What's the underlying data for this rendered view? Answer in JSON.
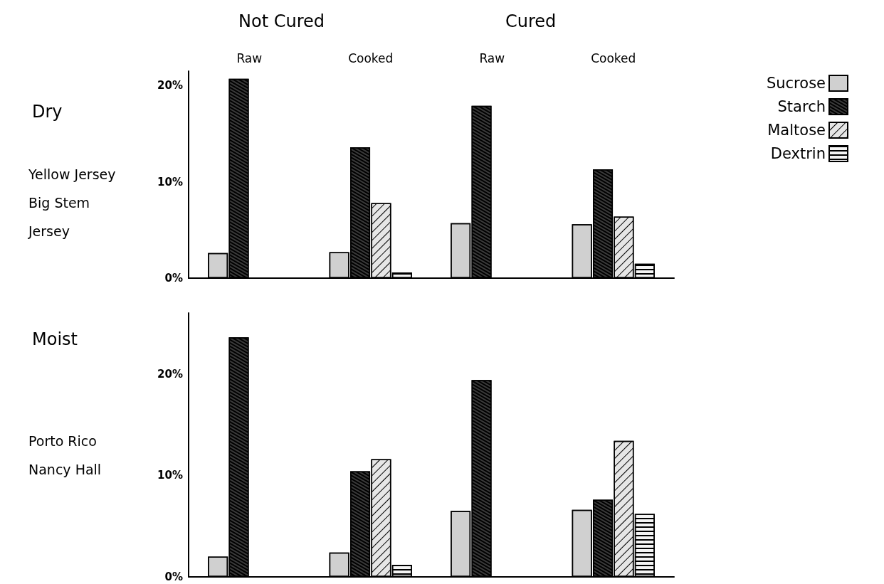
{
  "chart_data": [
    {
      "type": "bar",
      "title": "Dry",
      "categories": [
        "Raw",
        "Cooked",
        "Raw",
        "Cooked"
      ],
      "annotations": [
        "Not Cured",
        "Cured",
        "Yellow Jersey",
        "Big Stem",
        "Jersey"
      ],
      "series": [
        {
          "name": "Sucrose",
          "color": "#d0d0d0",
          "values": [
            2.6,
            2.7,
            5.7,
            5.6
          ]
        },
        {
          "name": "Starch",
          "color": "#3a3a3a",
          "values": [
            20.7,
            13.6,
            17.9,
            11.3
          ]
        },
        {
          "name": "Maltose",
          "color": "#e6e6e6",
          "values": [
            null,
            7.8,
            null,
            6.4
          ]
        },
        {
          "name": "Dextrin",
          "color": "#f4f4f4",
          "values": [
            null,
            0.6,
            null,
            1.5
          ]
        }
      ],
      "ylim": [
        0,
        21.5
      ],
      "yticks": [
        {
          "value": 0,
          "label": "0%"
        },
        {
          "value": 10,
          "label": "10%"
        },
        {
          "value": 20,
          "label": "20%"
        }
      ],
      "grid": false,
      "legend": "right"
    },
    {
      "type": "bar",
      "title": "Moist",
      "categories": [
        null,
        null,
        null,
        null
      ],
      "annotations": [
        "Porto Rico",
        "Nancy Hall"
      ],
      "series": [
        {
          "color": "#d0d0d0",
          "values": [
            2.0,
            2.4,
            6.5,
            6.6
          ]
        },
        {
          "color": "#3a3a3a",
          "values": [
            23.6,
            10.4,
            19.4,
            7.6
          ]
        },
        {
          "color": "#e6e6e6",
          "values": [
            null,
            11.6,
            null,
            13.4
          ]
        },
        {
          "color": "#f4f4f4",
          "values": [
            null,
            1.2,
            null,
            6.2
          ]
        }
      ],
      "ylim": [
        0,
        26
      ],
      "yticks": [
        {
          "value": 0,
          "label": "0%"
        },
        {
          "value": 10,
          "label": "10%"
        },
        {
          "value": 20,
          "label": "20%"
        }
      ],
      "grid": false,
      "legend": false
    }
  ]
}
